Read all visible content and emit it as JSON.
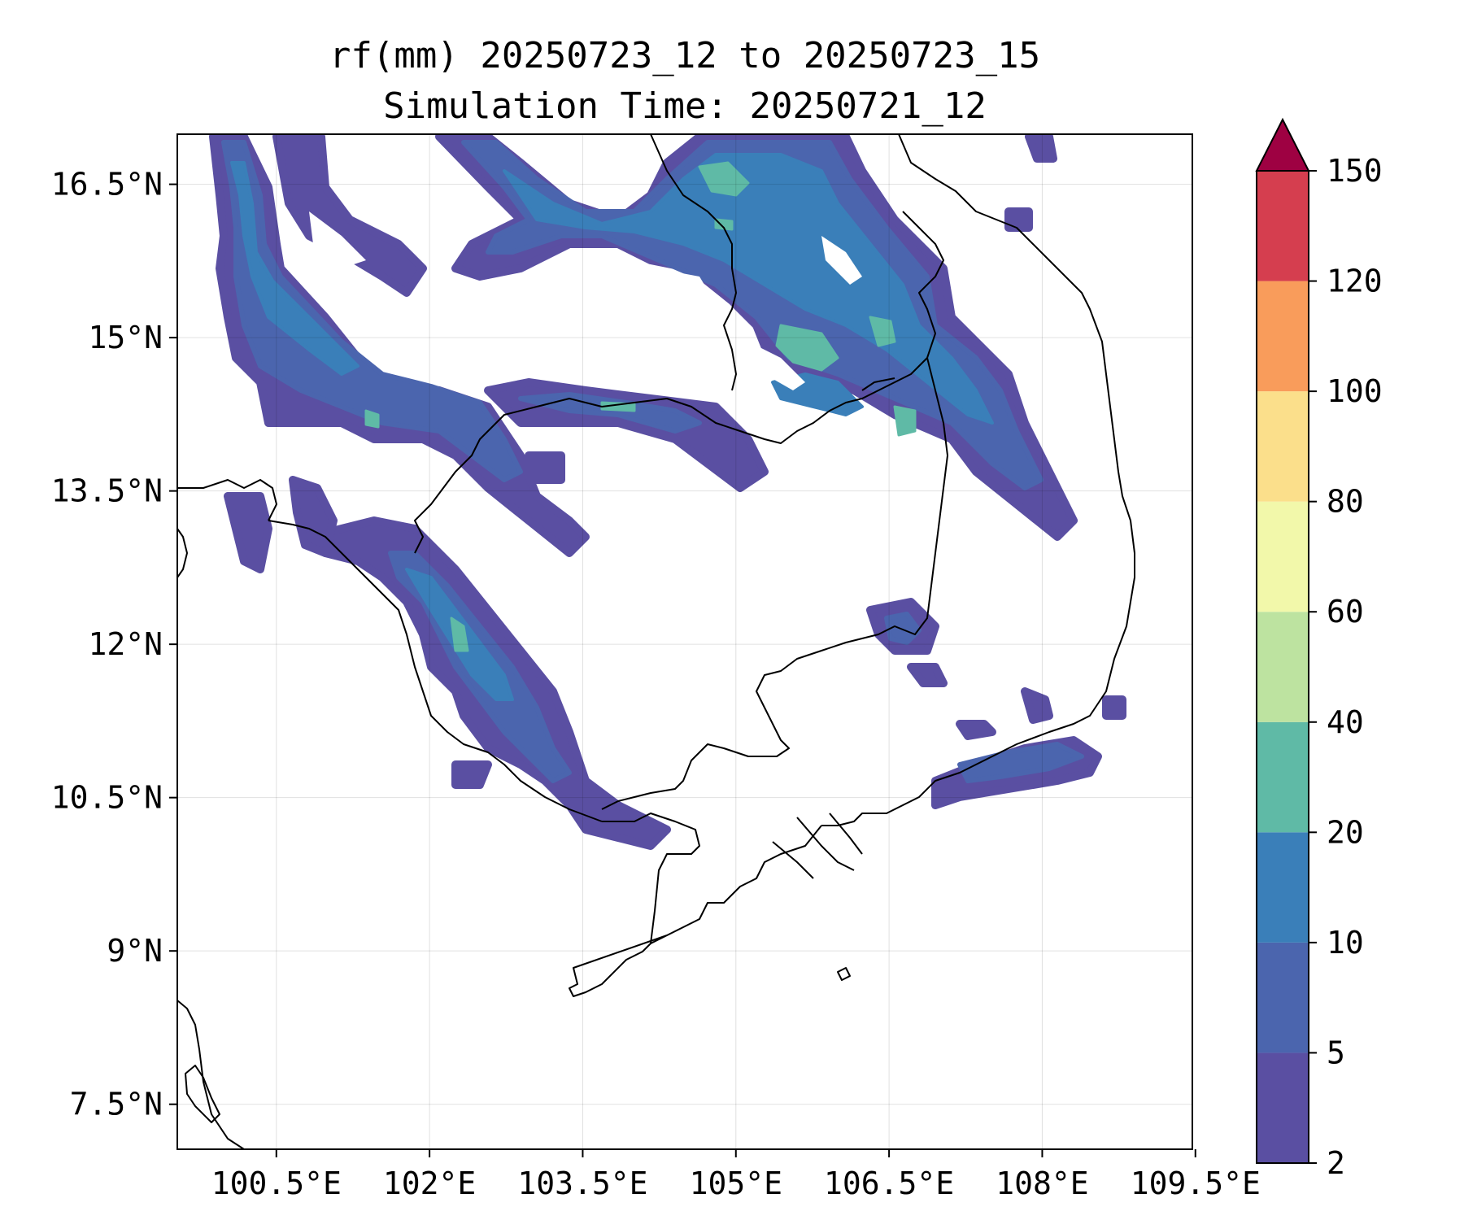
{
  "title": {
    "line1": "rf(mm) 20250723_12 to 20250723_15",
    "line2": "Simulation Time: 20250721_12"
  },
  "map": {
    "lon_range": [
      99.53,
      109.47
    ],
    "lat_range": [
      7.06,
      16.99
    ],
    "lon_ticks": [
      "100.5°E",
      "102°E",
      "103.5°E",
      "105°E",
      "106.5°E",
      "108°E",
      "109.5°E"
    ],
    "lon_tick_values": [
      100.5,
      102.0,
      103.5,
      105.0,
      106.5,
      108.0,
      109.5
    ],
    "lat_ticks": [
      "16.5°N",
      "15°N",
      "13.5°N",
      "12°N",
      "10.5°N",
      "9°N",
      "7.5°N"
    ],
    "lat_tick_values": [
      16.5,
      15.0,
      13.5,
      12.0,
      10.5,
      9.0,
      7.5
    ],
    "gridlines": true,
    "variable": "rf",
    "units": "mm"
  },
  "colorbar": {
    "levels": [
      "2",
      "5",
      "10",
      "20",
      "40",
      "60",
      "80",
      "100",
      "120",
      "150"
    ],
    "colors": [
      "#5a4fa2",
      "#4b65ae",
      "#3a7fb9",
      "#5fbaa6",
      "#bde3a0",
      "#f2f8aa",
      "#fbdf8b",
      "#f99c5b",
      "#d53e4f",
      "#9e0142"
    ],
    "extend": "max"
  },
  "colors": {
    "c1": "#5a4fa2",
    "c2": "#4b65ae",
    "c3": "#3a7fb9",
    "c4": "#5fbaa6"
  }
}
